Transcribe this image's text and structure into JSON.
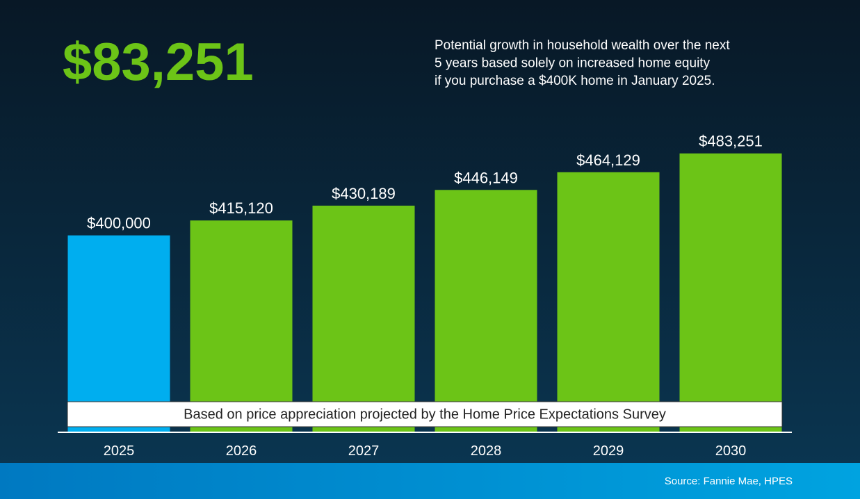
{
  "chart_data": {
    "type": "bar",
    "title": "$83,251",
    "subtitle": [
      "Potential growth in household wealth over the next",
      "5 years based solely on increased home equity",
      "if you purchase a $400K home in January 2025."
    ],
    "categories": [
      "2025",
      "2026",
      "2027",
      "2028",
      "2029",
      "2030"
    ],
    "values": [
      400000,
      415120,
      430189,
      446149,
      464129,
      483251
    ],
    "value_labels": [
      "$400,000",
      "$415,120",
      "$430,189",
      "$446,149",
      "$464,129",
      "$483,251"
    ],
    "colors": [
      "#00aeef",
      "#6cc417",
      "#6cc417",
      "#6cc417",
      "#6cc417",
      "#6cc417"
    ],
    "ylim": [
      200000,
      500000
    ],
    "annotation": "Based on price appreciation projected by the Home Price Expectations Survey",
    "source": "Source: Fannie Mae, HPES"
  }
}
